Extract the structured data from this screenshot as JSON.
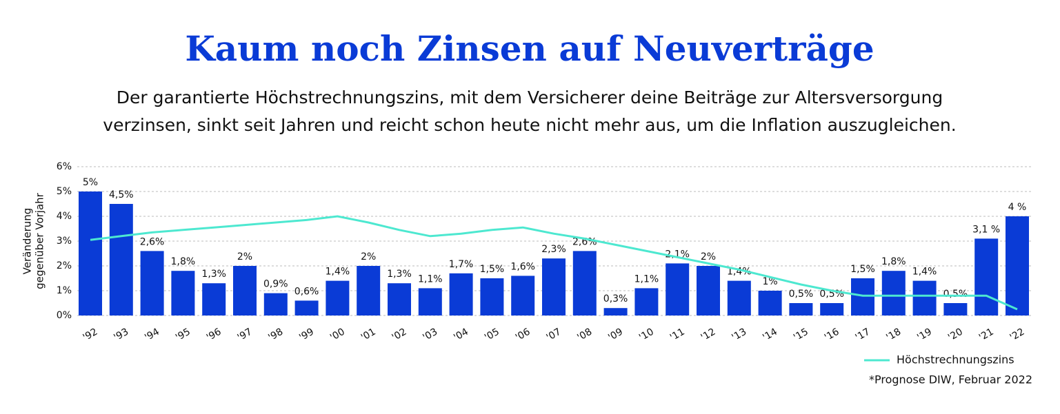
{
  "chart_data": {
    "type": "bar",
    "title": "Kaum noch Zinsen auf Neuverträge",
    "subtitle": [
      "Der garantierte Höchstrechnungszins, mit dem Versicherer deine Beiträge zur Altersversorgung",
      "verzinsen, sinkt seit Jahren und reicht schon heute nicht mehr aus, um die Inflation auszugleichen."
    ],
    "ylabel": [
      "Veränderung",
      "gegenüber Vorjahr"
    ],
    "categories": [
      "'92",
      "'93",
      "'94",
      "'95",
      "'96",
      "'97",
      "'98",
      "'99",
      "'00",
      "'01",
      "'02",
      "'03",
      "'04",
      "'05",
      "'06",
      "'07",
      "'08",
      "'09",
      "'10",
      "'11",
      "'12",
      "'13",
      "'14",
      "'15",
      "'16",
      "'17",
      "'18",
      "'19",
      "'20",
      "'21",
      "'22"
    ],
    "values": [
      5,
      4.5,
      2.6,
      1.8,
      1.3,
      2,
      0.9,
      0.6,
      1.4,
      2,
      1.3,
      1.1,
      1.7,
      1.5,
      1.6,
      2.3,
      2.6,
      0.3,
      1.1,
      2.1,
      2,
      1.4,
      1,
      0.5,
      0.5,
      1.5,
      1.8,
      1.4,
      0.5,
      3.1,
      4
    ],
    "value_labels": [
      "5%",
      "4,5%",
      "2,6%",
      "1,8%",
      "1,3%",
      "2%",
      "0,9%",
      "0,6%",
      "1,4%",
      "2%",
      "1,3%",
      "1,1%",
      "1,7%",
      "1,5%",
      "1,6%",
      "2,3%",
      "2,6%",
      "0,3%",
      "1,1%",
      "2,1%",
      "2%",
      "1,4%",
      "1%",
      "0,5%",
      "0,5%",
      "1,5%",
      "1,8%",
      "1,4%",
      "0,5%",
      "3,1 %",
      "4 %"
    ],
    "color": "#0a3bd6",
    "line": {
      "name": "Höchstrechnungszins",
      "color": "#4de8d0",
      "values": [
        3.05,
        3.2,
        3.35,
        3.45,
        3.55,
        3.65,
        3.75,
        3.85,
        4.0,
        3.75,
        3.45,
        3.2,
        3.3,
        3.45,
        3.55,
        3.3,
        3.1,
        2.85,
        2.6,
        2.35,
        2.1,
        1.85,
        1.55,
        1.25,
        1.0,
        0.8,
        0.8,
        0.8,
        0.8,
        0.8,
        0.25
      ]
    },
    "ylim": [
      0,
      6
    ],
    "yticks": [
      {
        "value": 0,
        "label": "0%"
      },
      {
        "value": 1,
        "label": "1%"
      },
      {
        "value": 2,
        "label": "2%"
      },
      {
        "value": 3,
        "label": "3%"
      },
      {
        "value": 4,
        "label": "4%"
      },
      {
        "value": 5,
        "label": "5%"
      },
      {
        "value": 6,
        "label": "6%"
      }
    ],
    "grid": true,
    "footnote": "*Prognose DIW, Februar 2022"
  }
}
